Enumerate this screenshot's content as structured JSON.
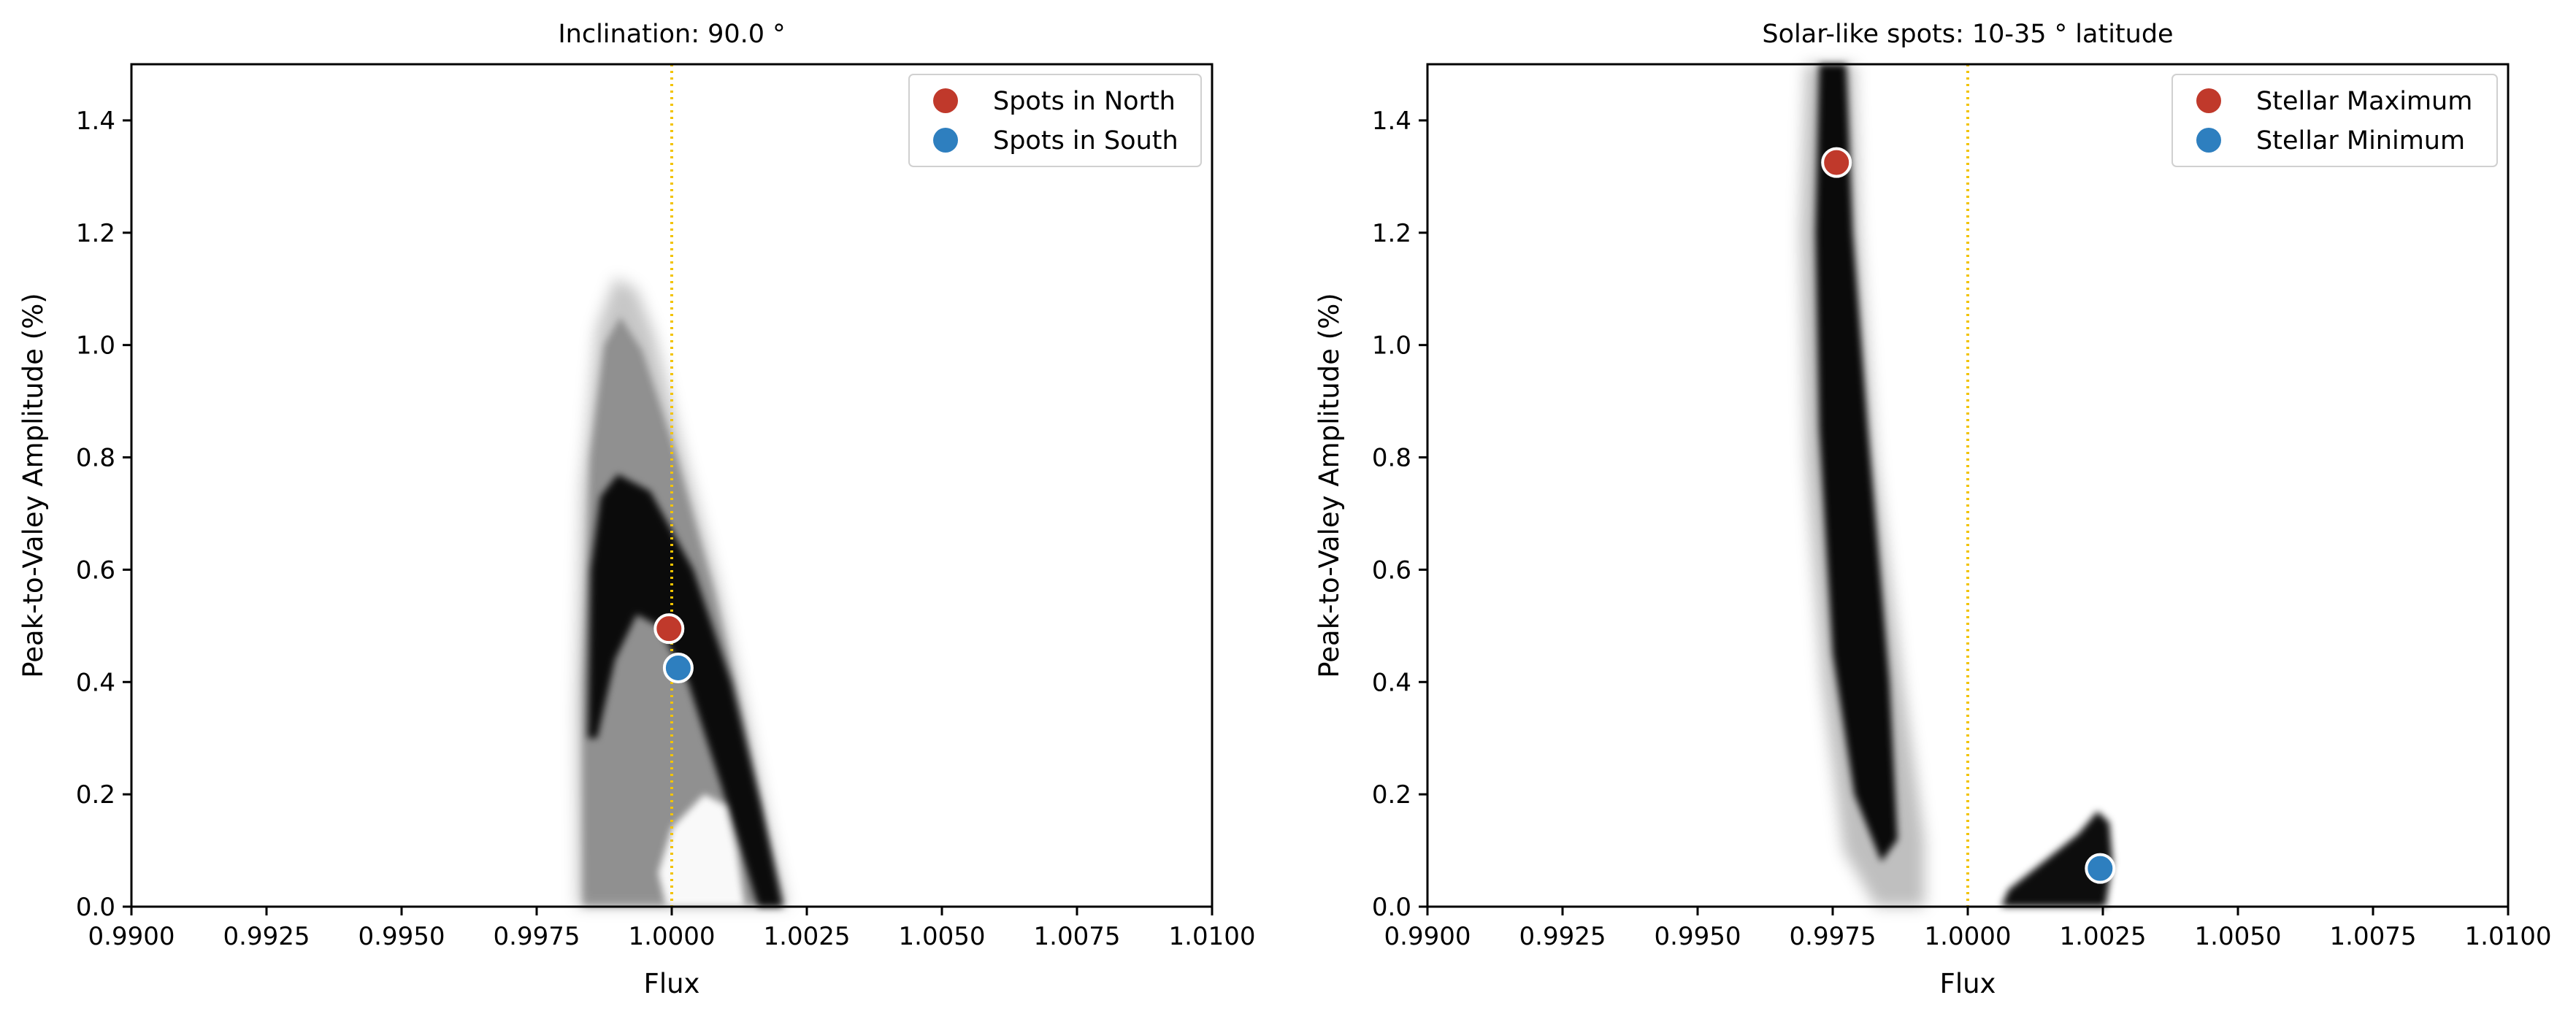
{
  "chart_data": [
    {
      "type": "scatter",
      "title": "Inclination: 90.0$^\\circ$",
      "title_display": "Inclination: 90.0 °",
      "xlabel": "Flux",
      "ylabel": "Peak-to-Valey Amplitude (%)",
      "xlim": [
        0.99,
        1.01
      ],
      "ylim": [
        0.0,
        1.5
      ],
      "xticks": [
        "0.9900",
        "0.9925",
        "0.9950",
        "0.9975",
        "1.0000",
        "1.0025",
        "1.0050",
        "1.0075",
        "1.0100"
      ],
      "yticks": [
        "0.0",
        "0.2",
        "0.4",
        "0.6",
        "0.8",
        "1.0",
        "1.2",
        "1.4"
      ],
      "reference_line": {
        "x": 1.0,
        "style": "dotted",
        "color": "#f2c300"
      },
      "legend_position": "top-right",
      "grid": false,
      "cloud": {
        "color": "#000000",
        "shape": "triangular band",
        "x_range": [
          0.9983,
          1.0022
        ],
        "y_range": [
          0.0,
          1.12
        ],
        "apex": {
          "x": 0.999,
          "y": 1.12
        },
        "dense_band_apex": {
          "x": 0.999,
          "y": 0.77
        }
      },
      "series": [
        {
          "name": "Spots in North",
          "color": "#c0392b",
          "points": [
            {
              "x": 0.99995,
              "y": 0.495
            }
          ]
        },
        {
          "name": "Spots in South",
          "color": "#2e7fbf",
          "points": [
            {
              "x": 1.00012,
              "y": 0.425
            }
          ]
        }
      ]
    },
    {
      "type": "scatter",
      "title": "Solar-like spots: 10-35$^\\circ$ latitude",
      "title_display": "Solar-like spots: 10-35 ° latitude",
      "xlabel": "Flux",
      "ylabel": "Peak-to-Valey Amplitude (%)",
      "xlim": [
        0.99,
        1.01
      ],
      "ylim": [
        0.0,
        1.5
      ],
      "xticks": [
        "0.9900",
        "0.9925",
        "0.9950",
        "0.9975",
        "1.0000",
        "1.0025",
        "1.0050",
        "1.0075",
        "1.0100"
      ],
      "yticks": [
        "0.0",
        "0.2",
        "0.4",
        "0.6",
        "0.8",
        "1.0",
        "1.2",
        "1.4"
      ],
      "reference_line": {
        "x": 1.0,
        "style": "dotted",
        "color": "#f2c300"
      },
      "legend_position": "top-right",
      "grid": false,
      "clouds": [
        {
          "color": "#000000",
          "shape": "narrow diagonal band",
          "x_range": [
            0.997,
            0.9992
          ],
          "y_range": [
            0.0,
            1.5
          ]
        },
        {
          "color": "#000000",
          "shape": "small wedge",
          "x_range": [
            1.0006,
            1.0026
          ],
          "y_range": [
            0.0,
            0.2
          ]
        }
      ],
      "series": [
        {
          "name": "Stellar Maximum",
          "color": "#c0392b",
          "points": [
            {
              "x": 0.99757,
              "y": 1.325
            }
          ]
        },
        {
          "name": "Stellar Minimum",
          "color": "#2e7fbf",
          "points": [
            {
              "x": 1.00245,
              "y": 0.068
            }
          ]
        }
      ]
    }
  ]
}
